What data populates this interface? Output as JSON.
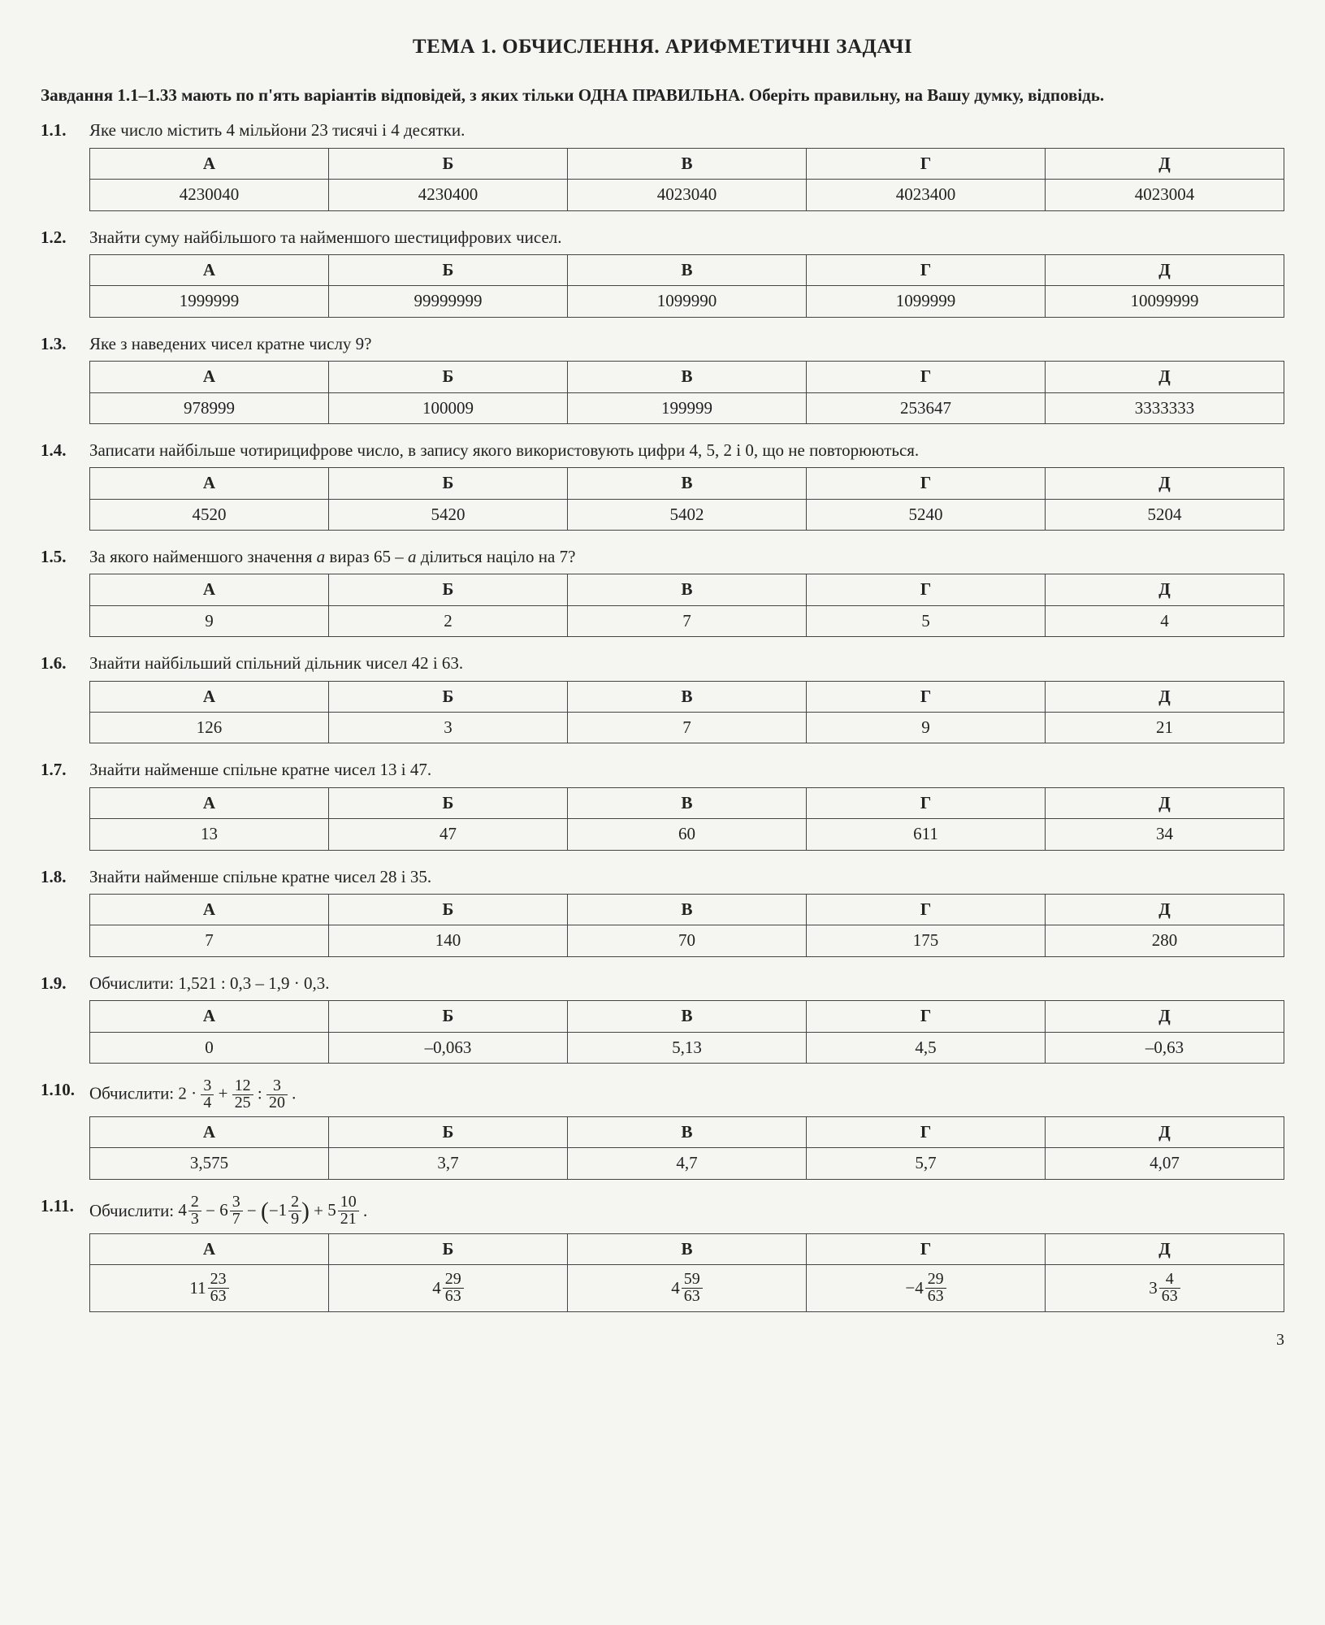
{
  "title": "ТЕМА 1. ОБЧИСЛЕННЯ. АРИФМЕТИЧНІ ЗАДАЧІ",
  "instructions": "Завдання 1.1–1.33 мають по п'ять варіантів відповідей, з яких тільки ОДНА ПРАВИЛЬНА. Оберіть правильну, на Вашу думку, відповідь.",
  "headers": [
    "А",
    "Б",
    "В",
    "Г",
    "Д"
  ],
  "page_number": "3",
  "questions": [
    {
      "num": "1.1.",
      "text": "Яке число містить 4 мільйони 23 тисячі і 4 десятки.",
      "answers": [
        "4230040",
        "4230400",
        "4023040",
        "4023400",
        "4023004"
      ]
    },
    {
      "num": "1.2.",
      "text": "Знайти суму найбільшого та найменшого шестицифрових чисел.",
      "answers": [
        "1999999",
        "99999999",
        "1099990",
        "1099999",
        "10099999"
      ]
    },
    {
      "num": "1.3.",
      "text": "Яке з наведених чисел кратне числу 9?",
      "answers": [
        "978999",
        "100009",
        "199999",
        "253647",
        "3333333"
      ]
    },
    {
      "num": "1.4.",
      "text": "Записати найбільше чотирицифрове число, в запису якого використовують цифри 4, 5, 2 і 0, що не повторюються.",
      "answers": [
        "4520",
        "5420",
        "5402",
        "5240",
        "5204"
      ]
    },
    {
      "num": "1.5.",
      "text_html": "За якого найменшого значення <i>a</i> вираз 65 – <i>a</i> ділиться націло на 7?",
      "answers": [
        "9",
        "2",
        "7",
        "5",
        "4"
      ]
    },
    {
      "num": "1.6.",
      "text": "Знайти найбільший спільний дільник чисел 42 і 63.",
      "answers": [
        "126",
        "3",
        "7",
        "9",
        "21"
      ]
    },
    {
      "num": "1.7.",
      "text": "Знайти найменше спільне кратне чисел 13 і 47.",
      "answers": [
        "13",
        "47",
        "60",
        "611",
        "34"
      ]
    },
    {
      "num": "1.8.",
      "text": "Знайти найменше спільне кратне чисел 28 і 35.",
      "answers": [
        "7",
        "140",
        "70",
        "175",
        "280"
      ]
    },
    {
      "num": "1.9.",
      "text": "Обчислити: 1,521 : 0,3 – 1,9 · 0,3.",
      "answers": [
        "0",
        "–0,063",
        "5,13",
        "4,5",
        "–0,63"
      ]
    },
    {
      "num": "1.10.",
      "formula": {
        "type": "q10"
      },
      "answers": [
        "3,575",
        "3,7",
        "4,7",
        "5,7",
        "4,07"
      ]
    },
    {
      "num": "1.11.",
      "formula": {
        "type": "q11"
      },
      "answers_frac": [
        {
          "whole": "11",
          "num": "23",
          "den": "63"
        },
        {
          "whole": "4",
          "num": "29",
          "den": "63"
        },
        {
          "whole": "4",
          "num": "59",
          "den": "63"
        },
        {
          "whole": "−4",
          "num": "29",
          "den": "63"
        },
        {
          "whole": "3",
          "num": "4",
          "den": "63"
        }
      ]
    }
  ],
  "q10_label": "Обчислити: ",
  "q11_label": "Обчислити: ",
  "q10_parts": {
    "prefix": "2 · ",
    "f1": {
      "num": "3",
      "den": "4"
    },
    "plus": " + ",
    "f2": {
      "num": "12",
      "den": "25"
    },
    "colon": " : ",
    "f3": {
      "num": "3",
      "den": "20"
    },
    "suffix": " ."
  },
  "q11_parts": {
    "m1": {
      "whole": "4",
      "num": "2",
      "den": "3"
    },
    "op1": " − ",
    "m2": {
      "whole": "6",
      "num": "3",
      "den": "7"
    },
    "op2": " − ",
    "lparen": "(",
    "neg": "−",
    "m3": {
      "whole": "1",
      "num": "2",
      "den": "9"
    },
    "rparen": ")",
    "op3": " + ",
    "m4": {
      "whole": "5",
      "num": "10",
      "den": "21"
    },
    "suffix": " ."
  }
}
